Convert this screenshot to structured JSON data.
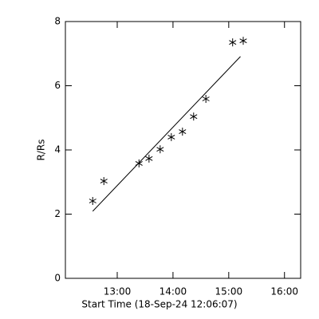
{
  "chart_data": {
    "type": "scatter",
    "xlabel": "Start Time (18-Sep-24 12:06:07)",
    "ylabel": "R/Rs",
    "xlim": [
      12.07,
      16.29
    ],
    "ylim": [
      0,
      8
    ],
    "xticks": [
      {
        "value": 13,
        "label": "13:00"
      },
      {
        "value": 14,
        "label": "14:00"
      },
      {
        "value": 15,
        "label": "15:00"
      },
      {
        "value": 16,
        "label": "16:00"
      }
    ],
    "yticks": [
      0,
      2,
      4,
      6,
      8
    ],
    "series": [
      {
        "marker": "asterisk",
        "line": false,
        "color": "#000000",
        "x": [
          12.56,
          12.76,
          13.39,
          13.57,
          13.77,
          13.97,
          14.17,
          14.37,
          14.59,
          15.07,
          15.26
        ],
        "values": [
          2.41,
          3.03,
          3.58,
          3.73,
          4.02,
          4.4,
          4.57,
          5.04,
          5.59,
          7.35,
          7.4
        ]
      },
      {
        "marker": "none",
        "line": true,
        "color": "#000000",
        "x": [
          12.56,
          15.21
        ],
        "values": [
          2.09,
          6.91
        ]
      }
    ]
  }
}
